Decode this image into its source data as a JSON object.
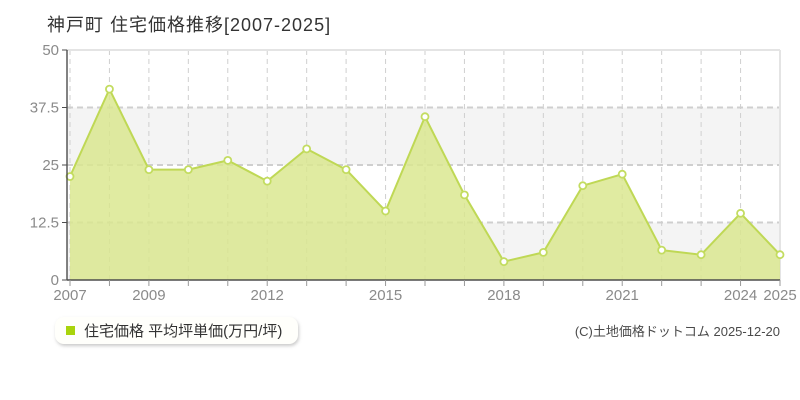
{
  "title": "神戸町 住宅価格推移[2007-2025]",
  "legend": {
    "label": "住宅価格 平均坪単価(万円/坪)"
  },
  "copyright": "(C)土地価格ドットコム 2025-12-20",
  "chart_data": {
    "type": "area",
    "title": "神戸町 住宅価格推移[2007-2025]",
    "xlabel": "",
    "ylabel": "平均坪単価(万円/坪)",
    "x": [
      2007,
      2008,
      2009,
      2010,
      2011,
      2012,
      2013,
      2014,
      2015,
      2016,
      2017,
      2018,
      2019,
      2020,
      2021,
      2022,
      2023,
      2024,
      2025
    ],
    "series": [
      {
        "name": "住宅価格 平均坪単価(万円/坪)",
        "values": [
          22.5,
          41.5,
          24,
          24,
          26,
          21.5,
          28.5,
          24,
          15,
          35.5,
          18.5,
          4,
          6,
          20.5,
          23,
          6.5,
          5.5,
          14.5,
          5.5
        ]
      }
    ],
    "ylim": [
      0,
      50
    ],
    "yticks": [
      0,
      12.5,
      25,
      37.5,
      50
    ],
    "ytick_labels": [
      "0",
      "12.5",
      "25",
      "37.5",
      "50"
    ],
    "xtick_label_years": [
      2007,
      2009,
      2012,
      2015,
      2018,
      2021,
      2024,
      2025
    ],
    "grid": true,
    "grid_style": "dashed",
    "legend_position": "bottom-left",
    "colors": {
      "area_fill": "#d9e78c",
      "line": "#bfd855",
      "marker_fill": "#ffffff",
      "marker_stroke": "#c3dc60",
      "grid": "#cfcfcf",
      "band": "#f4f4f4",
      "band_alt": "#ffffff",
      "axis": "#4d4d4d",
      "border": "#e4e4e4",
      "tick": "#999999",
      "tick_label": "#8a8a8a",
      "legend_marker": "#a9d40b",
      "title_color": "#333333"
    }
  }
}
